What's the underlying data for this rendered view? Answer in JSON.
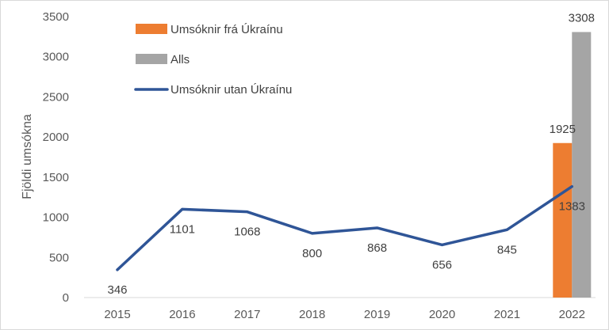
{
  "chart_data": {
    "type": "bar+line",
    "ylabel": "Fjöldi umsókna",
    "ylim": [
      0,
      3500
    ],
    "yticks": [
      0,
      500,
      1000,
      1500,
      2000,
      2500,
      3000,
      3500
    ],
    "categories": [
      "2015",
      "2016",
      "2017",
      "2018",
      "2019",
      "2020",
      "2021",
      "2022"
    ],
    "series": [
      {
        "name": "Umsóknir frá Úkraínu",
        "type": "bar",
        "color": "#ed7d31",
        "values": [
          null,
          null,
          null,
          null,
          null,
          null,
          null,
          1925
        ]
      },
      {
        "name": "Alls",
        "type": "bar",
        "color": "#a5a5a5",
        "values": [
          null,
          null,
          null,
          null,
          null,
          null,
          null,
          3308
        ]
      },
      {
        "name": "Umsóknir utan Úkraínu",
        "type": "line",
        "color": "#2f5597",
        "values": [
          346,
          1101,
          1068,
          800,
          868,
          656,
          845,
          1383
        ]
      }
    ],
    "legend_position": "top-left"
  }
}
